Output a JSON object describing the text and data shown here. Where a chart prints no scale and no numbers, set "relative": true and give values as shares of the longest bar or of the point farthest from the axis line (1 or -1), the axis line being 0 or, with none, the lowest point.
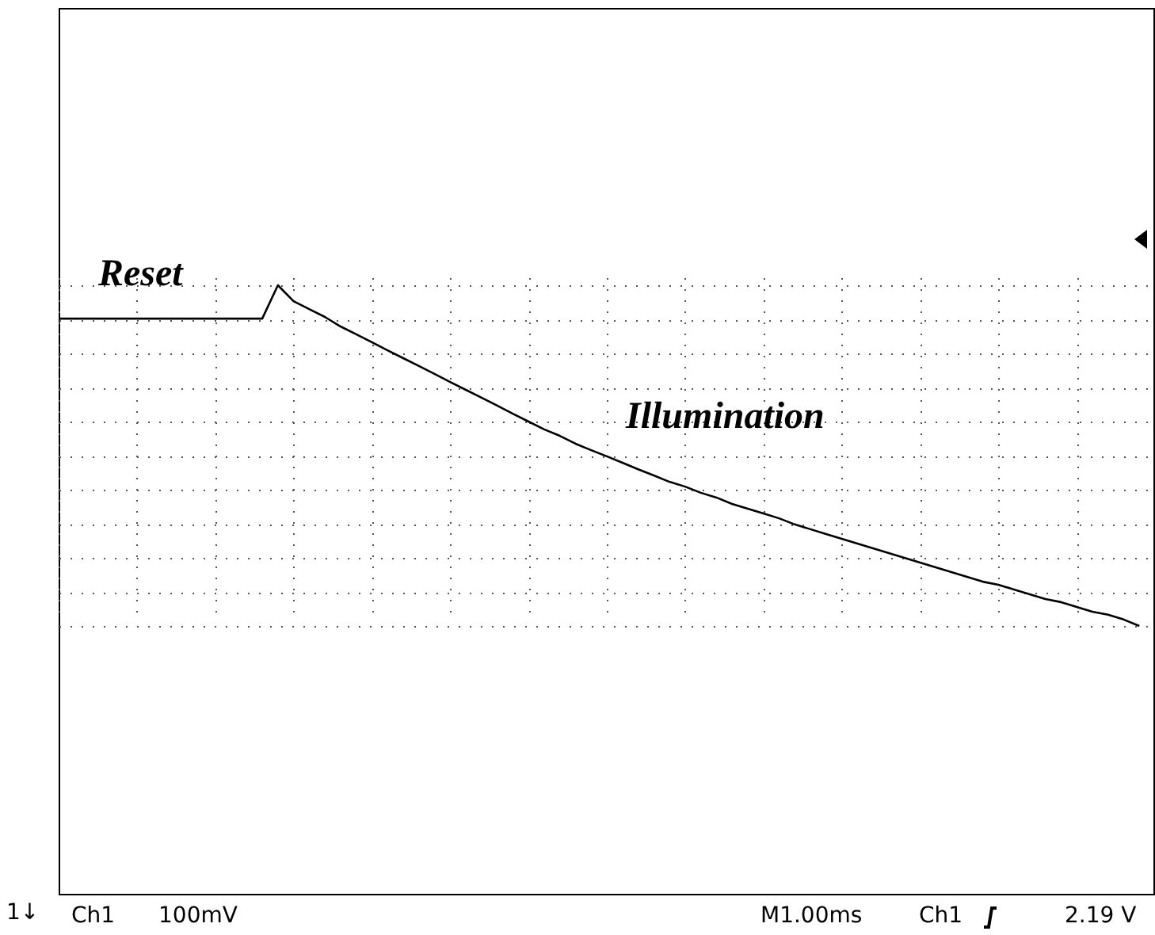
{
  "chart_data": {
    "type": "line",
    "relative": true,
    "grid": true,
    "marker": "none",
    "line_style": "solid",
    "categories": [
      null,
      null,
      null,
      null,
      null,
      null,
      null,
      null,
      null,
      null,
      null,
      null,
      null,
      null,
      null,
      null,
      null,
      null,
      null,
      null,
      null,
      null,
      null,
      null,
      null,
      null,
      null,
      null,
      null,
      null,
      null,
      null,
      null,
      null,
      null,
      null,
      null,
      null,
      null,
      null,
      null,
      null,
      null,
      null,
      null,
      null,
      null,
      null,
      null,
      null,
      null,
      null,
      null,
      null,
      null,
      null,
      null,
      null,
      null,
      null,
      null,
      null,
      null,
      null,
      null,
      null,
      null,
      null,
      null,
      null
    ],
    "series": [
      {
        "color": "#000000",
        "values": [
          0.902,
          0.902,
          0.902,
          0.902,
          0.902,
          0.902,
          0.902,
          0.902,
          0.902,
          0.902,
          0.902,
          0.902,
          0.902,
          0.902,
          1.0,
          0.953,
          0.93,
          0.907,
          0.879,
          0.856,
          0.833,
          0.809,
          0.786,
          0.763,
          0.74,
          0.716,
          0.693,
          0.67,
          0.647,
          0.623,
          0.6,
          0.577,
          0.558,
          0.535,
          0.516,
          0.498,
          0.479,
          0.46,
          0.442,
          0.423,
          0.409,
          0.391,
          0.377,
          0.358,
          0.344,
          0.33,
          0.316,
          0.298,
          0.284,
          0.27,
          0.256,
          0.242,
          0.228,
          0.214,
          0.2,
          0.186,
          0.172,
          0.158,
          0.144,
          0.13,
          0.121,
          0.107,
          0.093,
          0.079,
          0.07,
          0.056,
          0.042,
          0.033,
          0.019,
          0.0
        ]
      }
    ],
    "annotations": [
      "Reset",
      "Illumination",
      "1↓",
      "Ch1",
      "100mV",
      "M1.00ms",
      "Ch1",
      "2.19 V"
    ]
  }
}
